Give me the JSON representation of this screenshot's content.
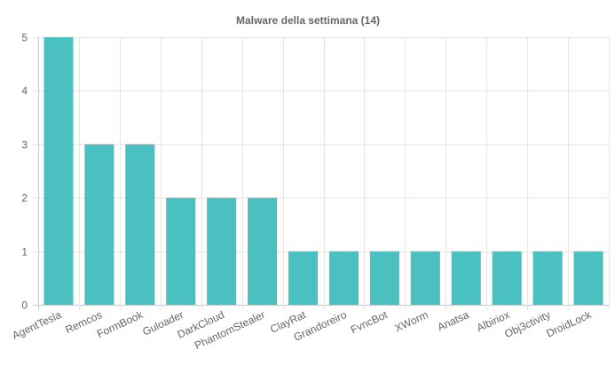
{
  "chart_data": {
    "type": "bar",
    "title": "Malware della settimana (14)",
    "categories": [
      "AgentTesla",
      "Remcos",
      "FormBook",
      "Guloader",
      "DarkCloud",
      "PhantomStealer",
      "ClayRat",
      "Grandoreiro",
      "FvncBot",
      "XWorm",
      "Anatsa",
      "Albiriox",
      "Obj3ctivity",
      "DroidLock"
    ],
    "values": [
      5,
      3,
      3,
      2,
      2,
      2,
      1,
      1,
      1,
      1,
      1,
      1,
      1,
      1
    ],
    "yticks": [
      0,
      1,
      2,
      3,
      4,
      5
    ],
    "ylim": [
      0,
      5
    ],
    "xlabel": "",
    "ylabel": "",
    "grid": true,
    "legend": "none",
    "bar_color": "#4bc0c0"
  }
}
